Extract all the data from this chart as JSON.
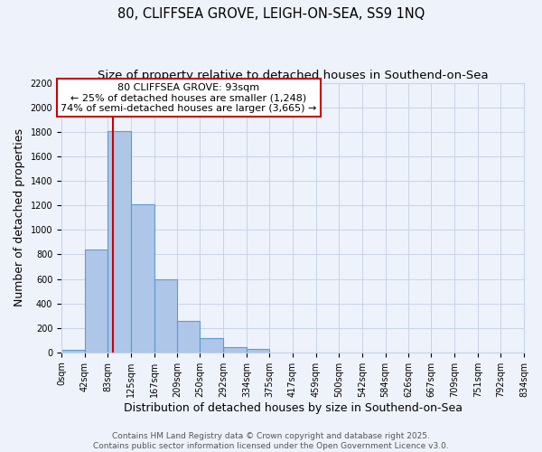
{
  "title_line1": "80, CLIFFSEA GROVE, LEIGH-ON-SEA, SS9 1NQ",
  "title_line2": "Size of property relative to detached houses in Southend-on-Sea",
  "xlabel": "Distribution of detached houses by size in Southend-on-Sea",
  "ylabel": "Number of detached properties",
  "bin_edges": [
    0,
    42,
    83,
    125,
    167,
    209,
    250,
    292,
    334,
    375,
    417,
    459,
    500,
    542,
    584,
    626,
    667,
    709,
    751,
    792,
    834
  ],
  "bin_heights": [
    20,
    840,
    1810,
    1210,
    600,
    255,
    120,
    45,
    25,
    0,
    0,
    0,
    0,
    0,
    0,
    0,
    0,
    0,
    0,
    0
  ],
  "bar_color": "#aec6e8",
  "bar_edge_color": "#5b9bd5",
  "bar_edge_width": 0.8,
  "red_line_x": 93,
  "annotation_title": "80 CLIFFSEA GROVE: 93sqm",
  "annotation_line2": "← 25% of detached houses are smaller (1,248)",
  "annotation_line3": "74% of semi-detached houses are larger (3,665) →",
  "annotation_box_color": "#ffffff",
  "annotation_box_edge": "#cc0000",
  "red_line_color": "#cc0000",
  "ylim": [
    0,
    2200
  ],
  "yticks": [
    0,
    200,
    400,
    600,
    800,
    1000,
    1200,
    1400,
    1600,
    1800,
    2000,
    2200
  ],
  "tick_labels": [
    "0sqm",
    "42sqm",
    "83sqm",
    "125sqm",
    "167sqm",
    "209sqm",
    "250sqm",
    "292sqm",
    "334sqm",
    "375sqm",
    "417sqm",
    "459sqm",
    "500sqm",
    "542sqm",
    "584sqm",
    "626sqm",
    "667sqm",
    "709sqm",
    "751sqm",
    "792sqm",
    "834sqm"
  ],
  "background_color": "#eef2fa",
  "grid_color": "#c8d4e8",
  "footer_line1": "Contains HM Land Registry data © Crown copyright and database right 2025.",
  "footer_line2": "Contains public sector information licensed under the Open Government Licence v3.0.",
  "title_fontsize": 10.5,
  "subtitle_fontsize": 9.5,
  "axis_label_fontsize": 9,
  "tick_fontsize": 7,
  "annotation_fontsize": 8,
  "footer_fontsize": 6.5
}
